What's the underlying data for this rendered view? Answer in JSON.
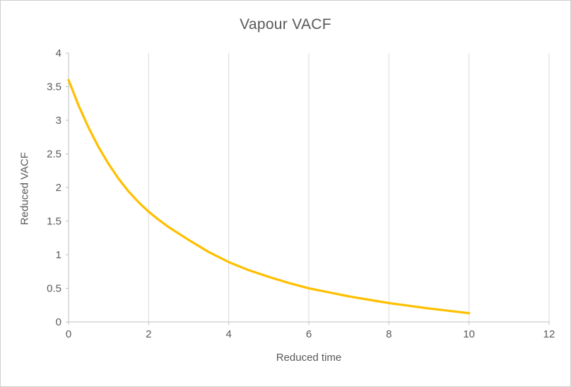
{
  "chart_data": {
    "type": "line",
    "title": "Vapour VACF",
    "xlabel": "Reduced time",
    "ylabel": "Reduced VACF",
    "xlim": [
      0,
      12
    ],
    "ylim": [
      0,
      4
    ],
    "xticks": [
      0,
      2,
      4,
      6,
      8,
      10,
      12
    ],
    "yticks": [
      0,
      0.5,
      1,
      1.5,
      2,
      2.5,
      3,
      3.5,
      4
    ],
    "grid": "vertical-only",
    "legend": "none",
    "series": [
      {
        "name": "Vapour VACF",
        "color": "#FFC000",
        "x": [
          0,
          0.25,
          0.5,
          0.75,
          1,
          1.25,
          1.5,
          1.75,
          2,
          2.25,
          2.5,
          3,
          3.5,
          4,
          4.5,
          5,
          5.5,
          6,
          6.5,
          7,
          7.5,
          8,
          8.5,
          9,
          9.5,
          10
        ],
        "y": [
          3.6,
          3.22,
          2.89,
          2.6,
          2.35,
          2.13,
          1.94,
          1.78,
          1.64,
          1.52,
          1.41,
          1.22,
          1.04,
          0.89,
          0.77,
          0.67,
          0.58,
          0.5,
          0.44,
          0.38,
          0.33,
          0.28,
          0.24,
          0.2,
          0.165,
          0.13
        ]
      }
    ]
  },
  "colors": {
    "line": "#FFC000",
    "gridline": "#d9d9d9",
    "axis": "#bfbfbf",
    "text": "#595959",
    "background": "#ffffff",
    "border": "#cfcfcf"
  }
}
